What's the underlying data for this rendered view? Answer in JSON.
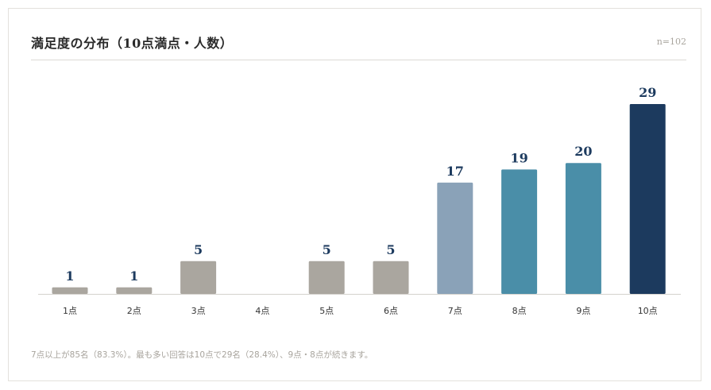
{
  "header": {
    "title": "満足度の分布（10点満点・人数）",
    "count": "n=102"
  },
  "note": "7点以上が85名（83.3%）。最も多い回答は10点で29名（28.4%）、9点・8点が続きます。",
  "colors": {
    "low": "#aaa69f",
    "mid": "#8aa2b8",
    "high": "#4a8ea8",
    "top": "#1c3a5e",
    "value_label": "#1c3a5e",
    "tick": "#333333",
    "axis": "#d4d2cd"
  },
  "chart_data": {
    "type": "bar",
    "categories": [
      "1点",
      "2点",
      "3点",
      "4点",
      "5点",
      "6点",
      "7点",
      "8点",
      "9点",
      "10点"
    ],
    "values": [
      1,
      1,
      5,
      0,
      5,
      5,
      17,
      19,
      20,
      29
    ],
    "value_labels": [
      "1",
      "1",
      "5",
      "",
      "5",
      "5",
      "17",
      "19",
      "20",
      "29"
    ],
    "color_keys": [
      "low",
      "low",
      "low",
      "low",
      "low",
      "low",
      "mid",
      "high",
      "high",
      "top"
    ],
    "title": "満足度の分布（10点満点・人数）",
    "xlabel": "",
    "ylabel": "",
    "ylim": [
      0,
      29
    ],
    "grid": false,
    "legend": "none"
  }
}
